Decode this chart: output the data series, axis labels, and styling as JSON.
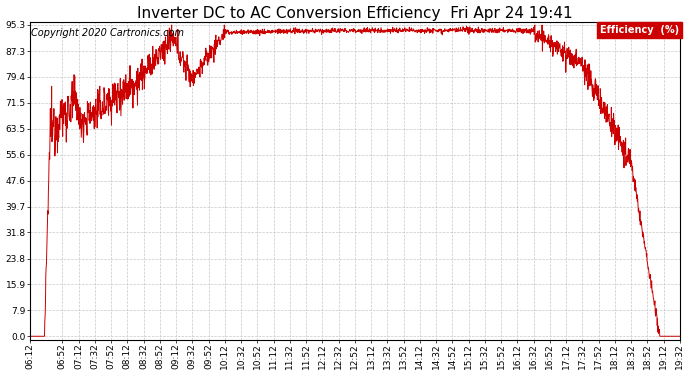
{
  "title": "Inverter DC to AC Conversion Efficiency  Fri Apr 24 19:41",
  "copyright": "Copyright 2020 Cartronics.com",
  "legend_label": "Efficiency  (%)",
  "legend_bg": "#cc0000",
  "legend_text_color": "#ffffff",
  "line_color": "#cc0000",
  "bg_color": "#ffffff",
  "plot_bg_color": "#ffffff",
  "grid_color": "#bbbbbb",
  "title_fontsize": 11,
  "copyright_fontsize": 7,
  "tick_fontsize": 6.5,
  "legend_fontsize": 7,
  "ytick_values": [
    0.0,
    7.9,
    15.9,
    23.8,
    31.8,
    39.7,
    47.6,
    55.6,
    63.5,
    71.5,
    79.4,
    87.3,
    95.3
  ],
  "xtick_labels": [
    "06:12",
    "06:52",
    "07:12",
    "07:32",
    "07:52",
    "08:12",
    "08:32",
    "08:52",
    "09:12",
    "09:32",
    "09:52",
    "10:12",
    "10:32",
    "10:52",
    "11:12",
    "11:32",
    "11:52",
    "12:12",
    "12:32",
    "12:52",
    "13:12",
    "13:32",
    "13:52",
    "14:12",
    "14:32",
    "14:52",
    "15:12",
    "15:32",
    "15:52",
    "16:12",
    "16:32",
    "16:52",
    "17:12",
    "17:32",
    "17:52",
    "18:12",
    "18:32",
    "18:52",
    "19:12",
    "19:32"
  ],
  "ymin": 0.0,
  "ymax": 95.3
}
